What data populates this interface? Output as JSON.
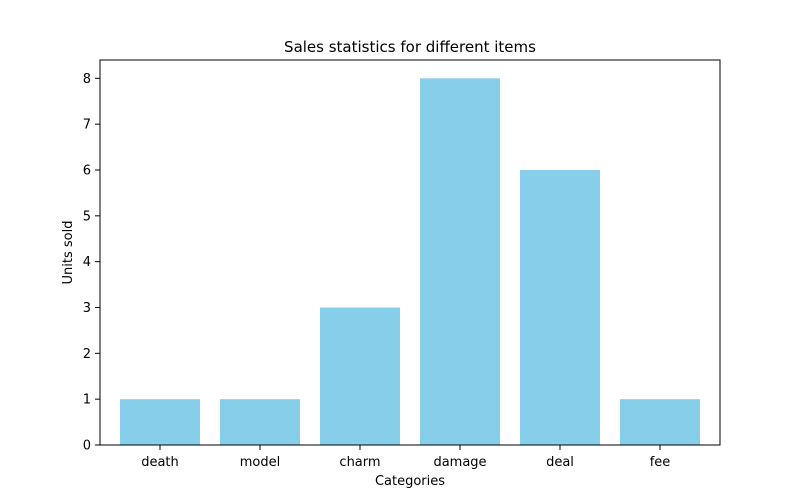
{
  "chart_data": {
    "type": "bar",
    "title": "Sales statistics for different items",
    "xlabel": "Categories",
    "ylabel": "Units sold",
    "categories": [
      "death",
      "model",
      "charm",
      "damage",
      "deal",
      "fee"
    ],
    "values": [
      1,
      1,
      3,
      8,
      6,
      1
    ],
    "ylim": [
      0,
      8.4
    ],
    "yticks": [
      0,
      1,
      2,
      3,
      4,
      5,
      6,
      7,
      8
    ],
    "bar_color": "#87ceeb",
    "grid": false,
    "legend": "none"
  }
}
